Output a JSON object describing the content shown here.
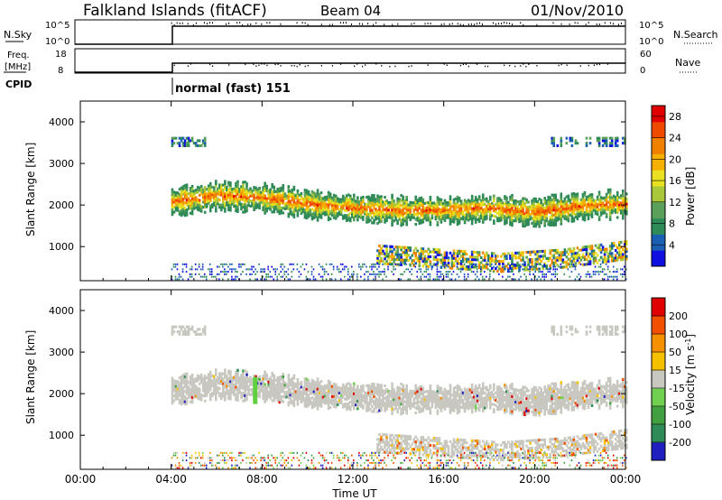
{
  "header": {
    "title": "Falkland Islands (fitACF)",
    "beam": "Beam 04",
    "date": "01/Nov/2010"
  },
  "status_panels": {
    "nsky": {
      "label": "N.Sky",
      "ticks": [
        "10^5",
        "10^0"
      ]
    },
    "nsearch": {
      "label": "N.Search",
      "ticks": [
        "10^5",
        "10^0"
      ]
    },
    "freq": {
      "label_line1": "Freq.",
      "label_line2": "[MHz]",
      "ticks": [
        18,
        8
      ]
    },
    "nave": {
      "label": "Nave",
      "ticks": [
        60,
        0
      ]
    },
    "cpid": {
      "label": "CPID",
      "mode": "normal (fast) 151"
    }
  },
  "chart_data": [
    {
      "type": "heatmap",
      "name": "power",
      "ylabel": "Slant Range [km]",
      "xlabel": "Time UT",
      "x_ticks": [
        "00:00",
        "04:00",
        "08:00",
        "12:00",
        "16:00",
        "20:00",
        "00:00"
      ],
      "x_range_hours": [
        0,
        24
      ],
      "ylim": [
        180,
        4500
      ],
      "y_ticks": [
        1000,
        2000,
        3000,
        4000
      ],
      "data_start_hour": 4,
      "colorbar": {
        "label": "Power [dB]",
        "ticks": [
          4,
          8,
          12,
          16,
          20,
          24,
          28
        ],
        "range": [
          0,
          30
        ],
        "colors": [
          "#1010e0",
          "#1a5fb4",
          "#2e8b57",
          "#5aa05a",
          "#a8c83a",
          "#e8e020",
          "#f5b000",
          "#f08000",
          "#f04a00",
          "#e00000"
        ]
      },
      "bands": [
        {
          "t_start": 4,
          "t_end": 24,
          "range_center": [
            2050,
            2200,
            2150,
            2000,
            1900,
            1850,
            1850,
            1900,
            1800,
            1950,
            2000
          ],
          "width_km": 550,
          "level": "strong"
        },
        {
          "t_start": 4,
          "t_end": 5.5,
          "range_center": [
            3500
          ],
          "width_km": 200,
          "level": "weak"
        },
        {
          "t_start": 13,
          "t_end": 24,
          "range_center": [
            800,
            700,
            600,
            700,
            900
          ],
          "width_km": 450,
          "level": "medium"
        }
      ]
    },
    {
      "type": "heatmap",
      "name": "velocity",
      "ylabel": "Slant Range [km]",
      "xlabel": "Time UT",
      "x_ticks": [
        "00:00",
        "04:00",
        "08:00",
        "12:00",
        "16:00",
        "20:00",
        "00:00"
      ],
      "x_range_hours": [
        0,
        24
      ],
      "ylim": [
        180,
        4500
      ],
      "y_ticks": [
        1000,
        2000,
        3000,
        4000
      ],
      "data_start_hour": 4,
      "colorbar": {
        "label": "Velocity [m s^-1]",
        "ticks": [
          200,
          100,
          50,
          15,
          -15,
          -50,
          -100,
          -200
        ],
        "colors": [
          "#2020c0",
          "#2e8b57",
          "#40a040",
          "#70d050",
          "#c8c8c0",
          "#f5c000",
          "#f59000",
          "#f05000",
          "#e00000"
        ]
      },
      "ground_scatter_color": "#c8c8c0",
      "feature": {
        "t": 7.6,
        "range": [
          1750,
          2400
        ],
        "color": "#60d040"
      }
    }
  ]
}
